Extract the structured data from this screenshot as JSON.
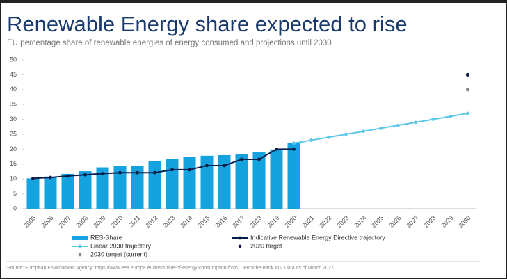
{
  "chart_data": {
    "type": "bar",
    "title": "Renewable Energy share expected to rise",
    "subtitle": "EU percentage share of renewable energies of energy consumed and projections until 2030",
    "source": "Source: European Environment Agency: https://www.eea.europa.eu/ims/share-of-energy-consumption-from, Deutsche Bank AG. Data as of March 2022",
    "categories": [
      "2005",
      "2006",
      "2007",
      "2008",
      "2009",
      "2010",
      "2011",
      "2012",
      "2013",
      "2014",
      "2015",
      "2016",
      "2017",
      "2018",
      "2019",
      "2020",
      "2021",
      "2022",
      "2023",
      "2024",
      "2025",
      "2026",
      "2027",
      "2028",
      "2029",
      "2030"
    ],
    "ylim": [
      0,
      50
    ],
    "yticks": [
      0,
      5,
      10,
      15,
      20,
      25,
      30,
      35,
      40,
      45,
      50
    ],
    "grid": false,
    "series": [
      {
        "name": "RES-Share",
        "type": "bar",
        "color": "#15a3e0",
        "values": [
          10.2,
          10.8,
          11.7,
          12.6,
          13.9,
          14.4,
          14.5,
          16.0,
          16.7,
          17.5,
          17.8,
          18.0,
          18.4,
          19.1,
          19.9,
          22.1,
          null,
          null,
          null,
          null,
          null,
          null,
          null,
          null,
          null,
          null
        ]
      },
      {
        "name": "Indicative Renewable Energy Directive trajectory",
        "type": "line",
        "color": "#0b1e4a",
        "values": [
          10.2,
          10.5,
          11.0,
          11.4,
          11.8,
          12.1,
          12.1,
          12.1,
          13.1,
          13.1,
          14.5,
          14.5,
          16.6,
          16.6,
          20,
          20,
          null,
          null,
          null,
          null,
          null,
          null,
          null,
          null,
          null,
          null
        ]
      },
      {
        "name": "Linear 2030 trajectory",
        "type": "line",
        "color": "#5bc8e8",
        "values": [
          null,
          null,
          null,
          null,
          null,
          null,
          null,
          null,
          null,
          null,
          null,
          null,
          null,
          null,
          null,
          22,
          23,
          24,
          25,
          26,
          27,
          28,
          29,
          30,
          31,
          32
        ]
      },
      {
        "name": "2020 target",
        "type": "scatter",
        "color": "#0b1e4a",
        "values": [
          null,
          null,
          null,
          null,
          null,
          null,
          null,
          null,
          null,
          null,
          null,
          null,
          null,
          null,
          null,
          null,
          null,
          null,
          null,
          null,
          null,
          null,
          null,
          null,
          null,
          45
        ]
      },
      {
        "name": "2030 target (current)",
        "type": "scatter",
        "color": "#8a8a8a",
        "values": [
          null,
          null,
          null,
          null,
          null,
          null,
          null,
          null,
          null,
          null,
          null,
          null,
          null,
          null,
          null,
          null,
          null,
          null,
          null,
          null,
          null,
          null,
          null,
          null,
          null,
          40
        ]
      }
    ]
  }
}
